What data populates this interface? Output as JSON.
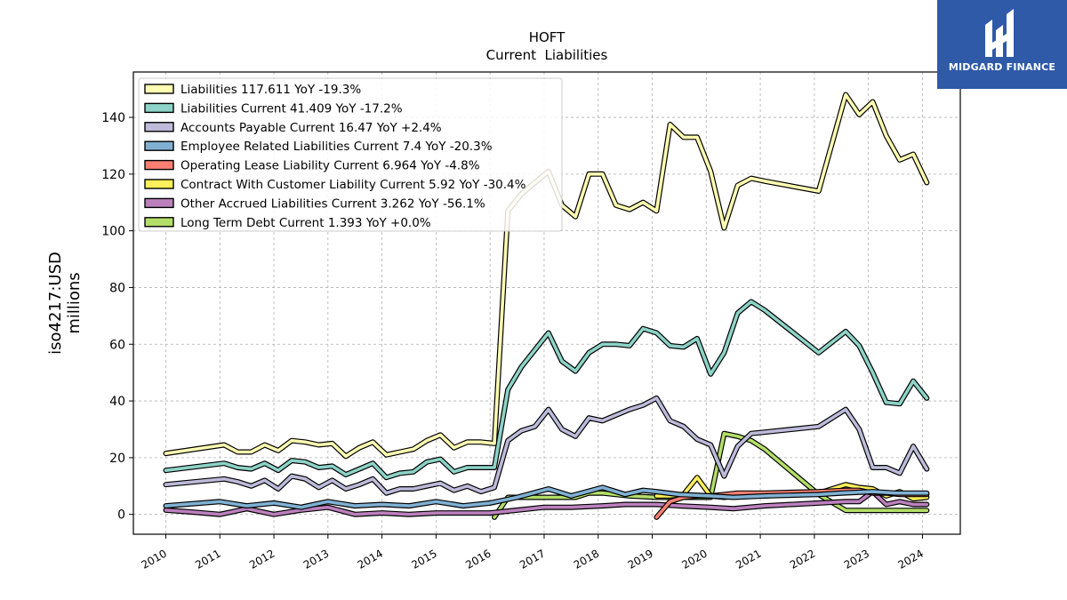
{
  "chart_data": {
    "type": "line",
    "title": "HOFT",
    "subtitle": "Current  Liabilities",
    "ylabel_line1": "iso4217:USD",
    "ylabel_line2": "millions",
    "xlim": [
      2009.4,
      2024.7
    ],
    "ylim": [
      -7,
      156
    ],
    "yticks": [
      0,
      20,
      40,
      60,
      80,
      100,
      120,
      140
    ],
    "xticks": [
      "2010",
      "2011",
      "2012",
      "2013",
      "2014",
      "2015",
      "2016",
      "2017",
      "2018",
      "2019",
      "2020",
      "2021",
      "2022",
      "2023",
      "2024"
    ],
    "grid": true,
    "legend_position": "top-left",
    "series": [
      {
        "name": "Liabilities  117.611 YoY -19.3%",
        "color": "#ffffb3",
        "x": [
          2010.0,
          2011.08,
          2011.33,
          2011.58,
          2011.83,
          2012.08,
          2012.33,
          2012.58,
          2012.83,
          2013.08,
          2013.33,
          2013.58,
          2013.83,
          2014.08,
          2014.33,
          2014.58,
          2014.83,
          2015.08,
          2015.33,
          2015.58,
          2015.83,
          2016.08,
          2016.33,
          2016.58,
          2016.83,
          2017.08,
          2017.33,
          2017.58,
          2017.83,
          2018.08,
          2018.33,
          2018.58,
          2018.83,
          2019.08,
          2019.33,
          2019.58,
          2019.83,
          2020.08,
          2020.33,
          2020.58,
          2020.83,
          2021.08,
          2022.08,
          2022.58,
          2022.83,
          2023.08,
          2023.33,
          2023.58,
          2023.83,
          2024.08
        ],
        "values": [
          21.5,
          24.5,
          22.0,
          22.0,
          24.5,
          22.5,
          26.0,
          25.5,
          24.5,
          25.0,
          20.5,
          23.5,
          25.5,
          21.0,
          22.0,
          23.0,
          26.0,
          28.0,
          23.5,
          25.5,
          25.5,
          25.0,
          107.0,
          113.0,
          117.0,
          121.0,
          109.0,
          105.0,
          120.0,
          120.0,
          109.0,
          107.5,
          110.0,
          107.0,
          137.5,
          133.0,
          133.0,
          121.0,
          101.0,
          116.0,
          118.5,
          117.5,
          114.0,
          148.0,
          141.0,
          145.5,
          133.5,
          125.0,
          127.0,
          117.0
        ]
      },
      {
        "name": "Liabilities Current  41.409 YoY -17.2%",
        "color": "#8dd3c7",
        "x": [
          2010.0,
          2011.08,
          2011.33,
          2011.58,
          2011.83,
          2012.08,
          2012.33,
          2012.58,
          2012.83,
          2013.08,
          2013.33,
          2013.58,
          2013.83,
          2014.08,
          2014.33,
          2014.58,
          2014.83,
          2015.08,
          2015.33,
          2015.58,
          2015.83,
          2016.08,
          2016.33,
          2016.58,
          2016.83,
          2017.08,
          2017.33,
          2017.58,
          2017.83,
          2018.08,
          2018.33,
          2018.58,
          2018.83,
          2019.08,
          2019.33,
          2019.58,
          2019.83,
          2020.08,
          2020.33,
          2020.58,
          2020.83,
          2021.08,
          2022.08,
          2022.58,
          2022.83,
          2023.08,
          2023.33,
          2023.58,
          2023.83,
          2024.08
        ],
        "values": [
          15.5,
          18.0,
          16.5,
          16.0,
          18.0,
          15.5,
          19.0,
          18.5,
          16.5,
          17.0,
          14.0,
          16.0,
          18.0,
          13.0,
          14.5,
          15.0,
          18.5,
          19.5,
          15.0,
          16.5,
          16.5,
          16.5,
          44.0,
          52.0,
          58.0,
          64.0,
          54.0,
          50.5,
          57.0,
          60.0,
          60.0,
          59.5,
          65.5,
          64.0,
          59.5,
          59.0,
          62.0,
          49.5,
          57.0,
          71.0,
          75.0,
          72.0,
          57.0,
          64.5,
          59.5,
          50.0,
          39.5,
          39.0,
          47.0,
          41.0
        ]
      },
      {
        "name": "Accounts Payable Current  16.47 YoY +2.4%",
        "color": "#bebada",
        "x": [
          2010.0,
          2011.08,
          2011.33,
          2011.58,
          2011.83,
          2012.08,
          2012.33,
          2012.58,
          2012.83,
          2013.08,
          2013.33,
          2013.58,
          2013.83,
          2014.08,
          2014.33,
          2014.58,
          2014.83,
          2015.08,
          2015.33,
          2015.58,
          2015.83,
          2016.08,
          2016.33,
          2016.58,
          2016.83,
          2017.08,
          2017.33,
          2017.58,
          2017.83,
          2018.08,
          2018.33,
          2018.58,
          2018.83,
          2019.08,
          2019.33,
          2019.58,
          2019.83,
          2020.08,
          2020.33,
          2020.58,
          2020.83,
          2021.08,
          2022.08,
          2022.58,
          2022.83,
          2023.08,
          2023.33,
          2023.58,
          2023.83,
          2024.08
        ],
        "values": [
          10.5,
          12.5,
          11.5,
          10.0,
          12.0,
          9.0,
          13.5,
          12.5,
          9.5,
          12.0,
          9.0,
          10.5,
          12.5,
          7.5,
          9.0,
          9.0,
          10.0,
          11.0,
          8.5,
          10.0,
          8.0,
          9.5,
          26.0,
          29.5,
          31.0,
          37.0,
          30.0,
          27.5,
          34.0,
          33.0,
          35.0,
          37.0,
          38.5,
          41.0,
          33.0,
          31.0,
          26.5,
          24.5,
          13.5,
          24.0,
          28.5,
          29.0,
          31.0,
          37.0,
          30.0,
          16.5,
          16.5,
          14.5,
          24.0,
          16.0
        ]
      },
      {
        "name": "Employee Related Liabilities Current  7.4 YoY -20.3%",
        "color": "#80b1d3",
        "x": [
          2010.0,
          2011.0,
          2011.5,
          2012.0,
          2012.5,
          2013.0,
          2013.5,
          2014.0,
          2014.5,
          2015.0,
          2015.5,
          2016.0,
          2016.5,
          2017.08,
          2017.5,
          2018.08,
          2018.5,
          2018.83,
          2019.08,
          2019.5,
          2020.08,
          2020.5,
          2021.08,
          2022.08,
          2022.5,
          2023.08,
          2023.5,
          2024.08
        ],
        "values": [
          3.0,
          4.5,
          3.0,
          4.0,
          2.5,
          4.5,
          3.0,
          3.5,
          3.0,
          4.5,
          3.0,
          4.0,
          6.0,
          9.0,
          6.5,
          9.5,
          7.0,
          8.5,
          8.0,
          7.0,
          6.5,
          6.0,
          6.5,
          7.0,
          7.5,
          8.0,
          7.5,
          7.5
        ]
      },
      {
        "name": "Operating Lease Liability Current  6.964 YoY -4.8%",
        "color": "#fb8072",
        "x": [
          2019.08,
          2019.33,
          2019.58,
          2019.83,
          2020.08,
          2020.33,
          2020.58,
          2020.83,
          2021.08,
          2022.08,
          2022.58,
          2022.83,
          2023.08,
          2023.33,
          2023.58,
          2023.83,
          2024.08
        ],
        "values": [
          -1.0,
          4.5,
          6.0,
          6.5,
          6.5,
          7.0,
          7.5,
          7.5,
          7.5,
          8.0,
          8.5,
          8.5,
          7.5,
          7.5,
          7.0,
          7.0,
          7.0
        ]
      },
      {
        "name": "Contract With Customer Liability Current  5.92 YoY -30.4%",
        "color": "#fdf05b",
        "x": [
          2019.08,
          2019.33,
          2019.58,
          2019.83,
          2020.08,
          2020.33,
          2020.58,
          2020.83,
          2021.08,
          2022.08,
          2022.58,
          2022.83,
          2023.08,
          2023.33,
          2023.58,
          2023.83,
          2024.08
        ],
        "values": [
          6.5,
          6.5,
          7.0,
          13.0,
          6.5,
          6.0,
          6.5,
          6.5,
          6.5,
          7.5,
          10.5,
          9.5,
          9.0,
          6.5,
          8.0,
          5.5,
          6.0
        ]
      },
      {
        "name": "Other Accrued Liabilities Current  3.262 YoY -56.1%",
        "color": "#bc80bd",
        "x": [
          2010.0,
          2010.5,
          2011.0,
          2011.5,
          2012.0,
          2012.5,
          2013.0,
          2013.5,
          2014.0,
          2014.5,
          2015.0,
          2015.5,
          2016.0,
          2016.5,
          2017.0,
          2017.5,
          2018.08,
          2018.5,
          2019.08,
          2019.5,
          2020.08,
          2020.5,
          2021.08,
          2022.08,
          2022.58,
          2022.83,
          2023.08,
          2023.33,
          2023.58,
          2023.83,
          2024.08
        ],
        "values": [
          1.5,
          0.8,
          0.0,
          2.0,
          0.0,
          1.5,
          2.5,
          0.0,
          0.5,
          0.0,
          0.5,
          0.5,
          0.5,
          1.5,
          2.5,
          2.5,
          3.0,
          3.5,
          3.5,
          3.0,
          2.5,
          2.0,
          3.0,
          4.0,
          4.5,
          4.5,
          8.0,
          3.5,
          4.5,
          3.5,
          3.5
        ]
      },
      {
        "name": "Long Term Debt Current  1.393 YoY +0.0%",
        "color": "#b3de69",
        "x": [
          2016.08,
          2016.33,
          2016.58,
          2016.83,
          2017.08,
          2017.33,
          2017.58,
          2017.83,
          2018.08,
          2018.58,
          2019.08,
          2019.5,
          2020.08,
          2020.33,
          2020.58,
          2020.83,
          2021.08,
          2022.08,
          2022.58,
          2022.83,
          2023.08,
          2023.33,
          2023.58,
          2023.83,
          2024.08
        ],
        "values": [
          -1.0,
          6.0,
          6.0,
          6.0,
          6.0,
          6.0,
          6.0,
          7.5,
          7.5,
          6.5,
          6.0,
          6.0,
          6.0,
          28.5,
          27.5,
          26.0,
          23.0,
          7.0,
          1.4,
          1.4,
          1.4,
          1.4,
          1.4,
          1.4,
          1.4
        ]
      }
    ]
  },
  "logo": {
    "name": "MIDGARD FINANCE"
  }
}
